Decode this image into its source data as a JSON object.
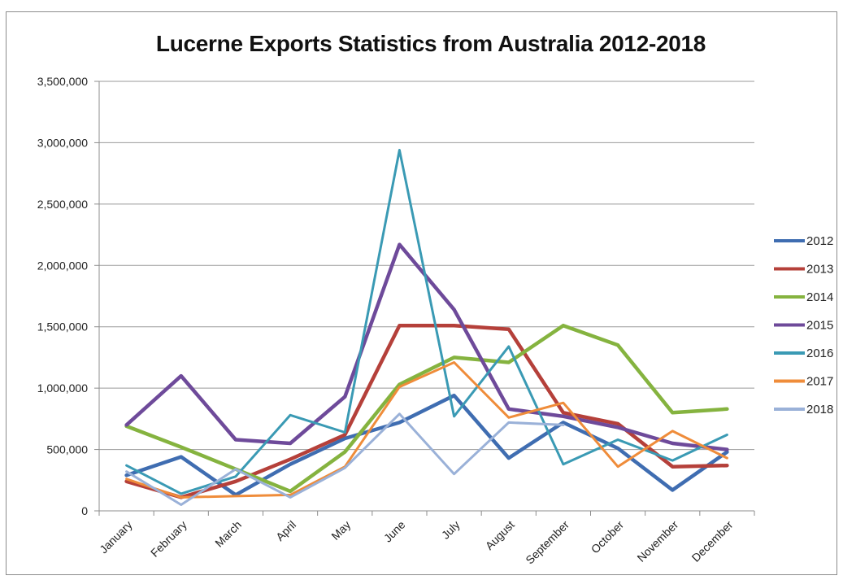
{
  "chart_data": {
    "type": "line",
    "title": "Lucerne Exports Statistics from Australia 2012-2018",
    "xlabel": "",
    "ylabel": "",
    "ylim": [
      0,
      3500000
    ],
    "yticks": [
      "0",
      "500,000",
      "1,000,000",
      "1,500,000",
      "2,000,000",
      "2,500,000",
      "3,000,000",
      "3,500,000"
    ],
    "categories": [
      "January",
      "February",
      "March",
      "April",
      "May",
      "June",
      "July",
      "August",
      "September",
      "October",
      "November",
      "December"
    ],
    "grid": true,
    "legend_position": "right",
    "series": [
      {
        "name": "2012",
        "color": "#3f6db1",
        "values": [
          290000,
          440000,
          130000,
          380000,
          590000,
          720000,
          940000,
          430000,
          720000,
          510000,
          170000,
          480000
        ]
      },
      {
        "name": "2013",
        "color": "#b5403a",
        "values": [
          240000,
          110000,
          240000,
          420000,
          620000,
          1510000,
          1510000,
          1480000,
          800000,
          710000,
          360000,
          370000
        ]
      },
      {
        "name": "2014",
        "color": "#85b33f",
        "values": [
          690000,
          520000,
          340000,
          160000,
          480000,
          1030000,
          1250000,
          1210000,
          1510000,
          1350000,
          800000,
          830000
        ]
      },
      {
        "name": "2015",
        "color": "#6e4a9a",
        "values": [
          700000,
          1100000,
          580000,
          550000,
          930000,
          2170000,
          1640000,
          830000,
          770000,
          680000,
          550000,
          500000
        ]
      },
      {
        "name": "2016",
        "color": "#3a9ab4",
        "values": [
          370000,
          140000,
          280000,
          780000,
          640000,
          2940000,
          770000,
          1340000,
          380000,
          580000,
          410000,
          620000
        ]
      },
      {
        "name": "2017",
        "color": "#ef8c3a",
        "values": [
          260000,
          110000,
          120000,
          130000,
          360000,
          1010000,
          1210000,
          760000,
          880000,
          360000,
          650000,
          430000
        ]
      },
      {
        "name": "2018",
        "color": "#9ab1d8",
        "values": [
          320000,
          50000,
          340000,
          110000,
          350000,
          790000,
          300000,
          720000,
          700000,
          null,
          null,
          null
        ]
      }
    ]
  }
}
